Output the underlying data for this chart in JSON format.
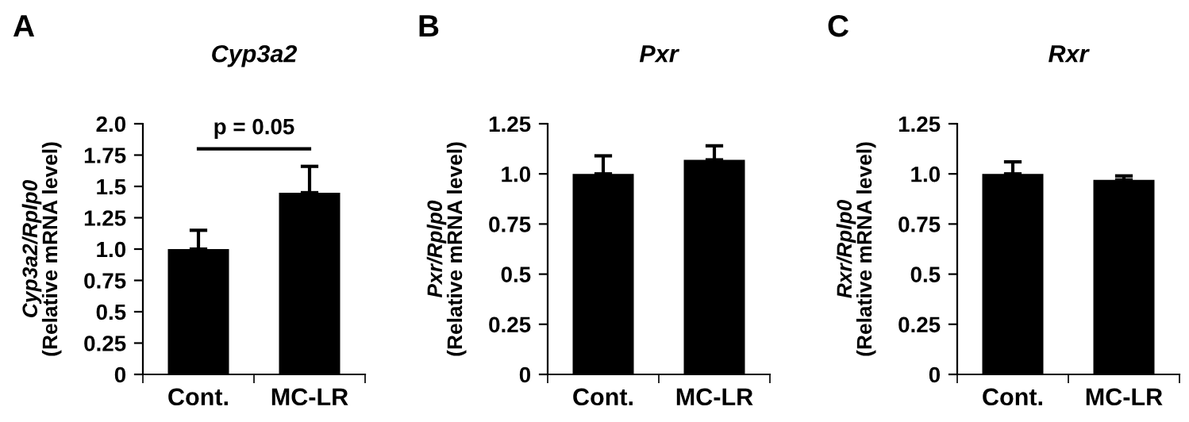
{
  "chart_data": [
    {
      "type": "bar",
      "title": "Cyp3a2",
      "ylabel": "Cyp3a2/Rplp0\n(Relative mRNA level)",
      "categories": [
        "Cont.",
        "MC-LR"
      ],
      "values": [
        1.0,
        1.45
      ],
      "errors": [
        [
          1.0,
          1.15
        ],
        [
          1.45,
          1.66
        ]
      ],
      "color": "#000000",
      "ylim": [
        0,
        2.0
      ],
      "yticks": [
        0,
        0.25,
        {
          "value": 0.5,
          "label": "0.5"
        },
        0.75,
        {
          "value": 1.0,
          "label": "1.0"
        },
        1.25,
        {
          "value": 1.5,
          "label": "1.5"
        },
        1.75,
        {
          "value": 2.0,
          "label": "2.0"
        }
      ],
      "grid": false,
      "legend": false,
      "annotations": [
        "A",
        "p = 0.05"
      ]
    },
    {
      "type": "bar",
      "title": "Pxr",
      "ylabel": "Pxr/Rplp0\n(Relative mRNA level)",
      "categories": [
        "Cont.",
        "MC-LR"
      ],
      "values": [
        1.0,
        1.07
      ],
      "errors": [
        [
          1.0,
          1.09
        ],
        [
          1.07,
          1.14
        ]
      ],
      "color": "#000000",
      "ylim": [
        0,
        1.25
      ],
      "yticks": [
        0,
        0.25,
        {
          "value": 0.5,
          "label": "0.5"
        },
        0.75,
        {
          "value": 1.0,
          "label": "1.0"
        },
        1.25
      ],
      "grid": false,
      "legend": false,
      "annotations": [
        "B"
      ]
    },
    {
      "type": "bar",
      "title": "Rxr",
      "ylabel": "Rxr/Rplp0\n(Relative mRNA level)",
      "categories": [
        "Cont.",
        "MC-LR"
      ],
      "values": [
        1.0,
        0.97
      ],
      "errors": [
        [
          1.0,
          1.06
        ],
        [
          0.97,
          0.99
        ]
      ],
      "color": "#000000",
      "ylim": [
        0,
        1.25
      ],
      "yticks": [
        0,
        0.25,
        {
          "value": 0.5,
          "label": "0.5"
        },
        0.75,
        {
          "value": 1.0,
          "label": "1.0"
        },
        1.25
      ],
      "grid": false,
      "legend": false,
      "annotations": [
        "C"
      ]
    }
  ]
}
